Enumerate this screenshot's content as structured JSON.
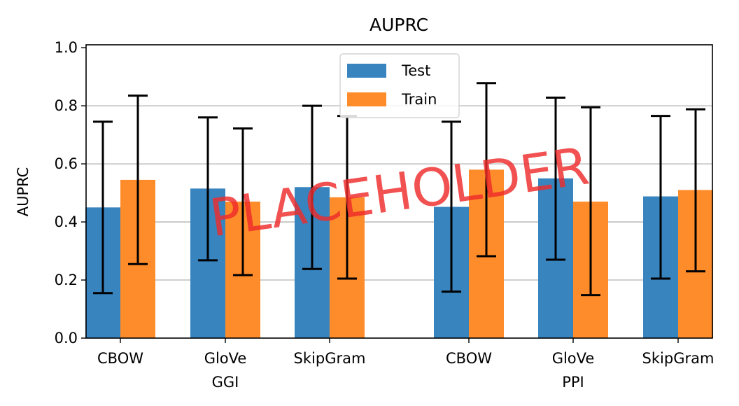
{
  "chart_data": {
    "type": "bar",
    "title": "AUPRC",
    "ylabel": "AUPRC",
    "xlabel": "",
    "ylim": [
      0,
      1.0
    ],
    "yticks": [
      0.0,
      0.2,
      0.4,
      0.6,
      0.8,
      1.0
    ],
    "ytick_labels": [
      "0.0",
      "0.2",
      "0.4",
      "0.6",
      "0.8",
      "1.0"
    ],
    "grid": "y",
    "legend_position": "top-center",
    "groups": [
      {
        "label": "GGI",
        "categories": [
          "CBOW",
          "GloVe",
          "SkipGram"
        ]
      },
      {
        "label": "PPI",
        "categories": [
          "CBOW",
          "GloVe",
          "SkipGram"
        ]
      }
    ],
    "series": [
      {
        "name": "Test",
        "color": "#3784bf",
        "values": [
          0.45,
          0.515,
          0.52,
          0.452,
          0.55,
          0.488
        ],
        "error_low": [
          0.155,
          0.268,
          0.238,
          0.16,
          0.27,
          0.205
        ],
        "error_high": [
          0.745,
          0.76,
          0.8,
          0.745,
          0.828,
          0.765
        ]
      },
      {
        "name": "Train",
        "color": "#ff8c2a",
        "values": [
          0.545,
          0.47,
          0.485,
          0.58,
          0.47,
          0.51
        ],
        "error_low": [
          0.255,
          0.217,
          0.205,
          0.282,
          0.148,
          0.23
        ],
        "error_high": [
          0.835,
          0.722,
          0.765,
          0.878,
          0.795,
          0.788
        ]
      }
    ]
  },
  "watermark": "PLACEHOLDER"
}
